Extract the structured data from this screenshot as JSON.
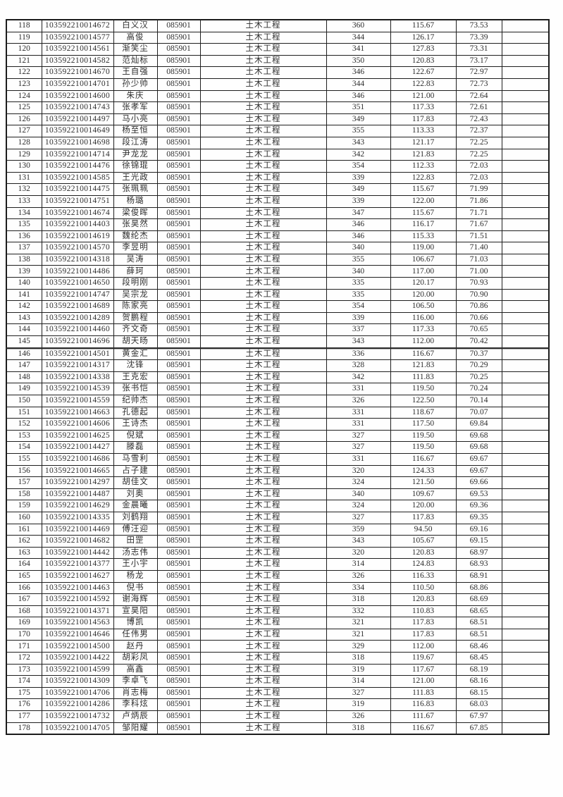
{
  "table": {
    "major_code_note": "085901",
    "major_name_note": "土木工程",
    "rows": [
      {
        "n": "118",
        "id": "103592210014672",
        "name": "白义汉",
        "code": "085901",
        "major": "土木工程",
        "s1": "360",
        "s2": "115.67",
        "s3": "73.53"
      },
      {
        "n": "119",
        "id": "103592210014577",
        "name": "高俊",
        "code": "085901",
        "major": "土木工程",
        "s1": "344",
        "s2": "126.17",
        "s3": "73.39"
      },
      {
        "n": "120",
        "id": "103592210014561",
        "name": "渐笑尘",
        "code": "085901",
        "major": "土木工程",
        "s1": "341",
        "s2": "127.83",
        "s3": "73.31"
      },
      {
        "n": "121",
        "id": "103592210014582",
        "name": "范灿标",
        "code": "085901",
        "major": "土木工程",
        "s1": "350",
        "s2": "120.83",
        "s3": "73.17"
      },
      {
        "n": "122",
        "id": "103592210014670",
        "name": "王自强",
        "code": "085901",
        "major": "土木工程",
        "s1": "346",
        "s2": "122.67",
        "s3": "72.97"
      },
      {
        "n": "123",
        "id": "103592210014701",
        "name": "孙少帅",
        "code": "085901",
        "major": "土木工程",
        "s1": "344",
        "s2": "122.83",
        "s3": "72.73"
      },
      {
        "n": "124",
        "id": "103592210014600",
        "name": "朱庆",
        "code": "085901",
        "major": "土木工程",
        "s1": "346",
        "s2": "121.00",
        "s3": "72.64"
      },
      {
        "n": "125",
        "id": "103592210014743",
        "name": "张孝军",
        "code": "085901",
        "major": "土木工程",
        "s1": "351",
        "s2": "117.33",
        "s3": "72.61"
      },
      {
        "n": "126",
        "id": "103592210014497",
        "name": "马小亮",
        "code": "085901",
        "major": "土木工程",
        "s1": "349",
        "s2": "117.83",
        "s3": "72.43"
      },
      {
        "n": "127",
        "id": "103592210014649",
        "name": "杨至恒",
        "code": "085901",
        "major": "土木工程",
        "s1": "355",
        "s2": "113.33",
        "s3": "72.37"
      },
      {
        "n": "128",
        "id": "103592210014698",
        "name": "段江涛",
        "code": "085901",
        "major": "土木工程",
        "s1": "343",
        "s2": "121.17",
        "s3": "72.25"
      },
      {
        "n": "129",
        "id": "103592210014714",
        "name": "尹龙龙",
        "code": "085901",
        "major": "土木工程",
        "s1": "342",
        "s2": "121.83",
        "s3": "72.25"
      },
      {
        "n": "130",
        "id": "103592210014476",
        "name": "徐锦琨",
        "code": "085901",
        "major": "土木工程",
        "s1": "354",
        "s2": "112.33",
        "s3": "72.03"
      },
      {
        "n": "131",
        "id": "103592210014585",
        "name": "王光政",
        "code": "085901",
        "major": "土木工程",
        "s1": "339",
        "s2": "122.83",
        "s3": "72.03"
      },
      {
        "n": "132",
        "id": "103592210014475",
        "name": "张珮珮",
        "code": "085901",
        "major": "土木工程",
        "s1": "349",
        "s2": "115.67",
        "s3": "71.99"
      },
      {
        "n": "133",
        "id": "103592210014751",
        "name": "杨璐",
        "code": "085901",
        "major": "土木工程",
        "s1": "339",
        "s2": "122.00",
        "s3": "71.86"
      },
      {
        "n": "134",
        "id": "103592210014674",
        "name": "梁俊晖",
        "code": "085901",
        "major": "土木工程",
        "s1": "347",
        "s2": "115.67",
        "s3": "71.71"
      },
      {
        "n": "135",
        "id": "103592210014403",
        "name": "张昊然",
        "code": "085901",
        "major": "土木工程",
        "s1": "346",
        "s2": "116.17",
        "s3": "71.67"
      },
      {
        "n": "136",
        "id": "103592210014619",
        "name": "魏纶杰",
        "code": "085901",
        "major": "土木工程",
        "s1": "346",
        "s2": "115.33",
        "s3": "71.51"
      },
      {
        "n": "137",
        "id": "103592210014570",
        "name": "李昱明",
        "code": "085901",
        "major": "土木工程",
        "s1": "340",
        "s2": "119.00",
        "s3": "71.40"
      },
      {
        "n": "138",
        "id": "103592210014318",
        "name": "吴涛",
        "code": "085901",
        "major": "土木工程",
        "s1": "355",
        "s2": "106.67",
        "s3": "71.03"
      },
      {
        "n": "139",
        "id": "103592210014486",
        "name": "薛珂",
        "code": "085901",
        "major": "土木工程",
        "s1": "340",
        "s2": "117.00",
        "s3": "71.00"
      },
      {
        "n": "140",
        "id": "103592210014650",
        "name": "段明刚",
        "code": "085901",
        "major": "土木工程",
        "s1": "335",
        "s2": "120.17",
        "s3": "70.93"
      },
      {
        "n": "141",
        "id": "103592210014747",
        "name": "吴宗龙",
        "code": "085901",
        "major": "土木工程",
        "s1": "335",
        "s2": "120.00",
        "s3": "70.90"
      },
      {
        "n": "142",
        "id": "103592210014689",
        "name": "陈家亮",
        "code": "085901",
        "major": "土木工程",
        "s1": "354",
        "s2": "106.50",
        "s3": "70.86"
      },
      {
        "n": "143",
        "id": "103592210014289",
        "name": "贺鹏程",
        "code": "085901",
        "major": "土木工程",
        "s1": "339",
        "s2": "116.00",
        "s3": "70.66"
      },
      {
        "n": "144",
        "id": "103592210014460",
        "name": "齐文奇",
        "code": "085901",
        "major": "土木工程",
        "s1": "337",
        "s2": "117.33",
        "s3": "70.65"
      },
      {
        "n": "145",
        "id": "103592210014696",
        "name": "胡天旸",
        "code": "085901",
        "major": "土木工程",
        "s1": "343",
        "s2": "112.00",
        "s3": "70.42"
      },
      {
        "n": "146",
        "id": "103592210014501",
        "name": "黄金汇",
        "code": "085901",
        "major": "土木工程",
        "s1": "336",
        "s2": "116.67",
        "s3": "70.37"
      },
      {
        "n": "147",
        "id": "103592210014317",
        "name": "沈锋",
        "code": "085901",
        "major": "土木工程",
        "s1": "328",
        "s2": "121.83",
        "s3": "70.29"
      },
      {
        "n": "148",
        "id": "103592210014338",
        "name": "王克宏",
        "code": "085901",
        "major": "土木工程",
        "s1": "342",
        "s2": "111.83",
        "s3": "70.25"
      },
      {
        "n": "149",
        "id": "103592210014539",
        "name": "张书恺",
        "code": "085901",
        "major": "土木工程",
        "s1": "331",
        "s2": "119.50",
        "s3": "70.24"
      },
      {
        "n": "150",
        "id": "103592210014559",
        "name": "纪帅杰",
        "code": "085901",
        "major": "土木工程",
        "s1": "326",
        "s2": "122.50",
        "s3": "70.14"
      },
      {
        "n": "151",
        "id": "103592210014663",
        "name": "孔德起",
        "code": "085901",
        "major": "土木工程",
        "s1": "331",
        "s2": "118.67",
        "s3": "70.07"
      },
      {
        "n": "152",
        "id": "103592210014606",
        "name": "王诗杰",
        "code": "085901",
        "major": "土木工程",
        "s1": "331",
        "s2": "117.50",
        "s3": "69.84"
      },
      {
        "n": "153",
        "id": "103592210014625",
        "name": "倪斌",
        "code": "085901",
        "major": "土木工程",
        "s1": "327",
        "s2": "119.50",
        "s3": "69.68"
      },
      {
        "n": "154",
        "id": "103592210014427",
        "name": "滕磊",
        "code": "085901",
        "major": "土木工程",
        "s1": "327",
        "s2": "119.50",
        "s3": "69.68"
      },
      {
        "n": "155",
        "id": "103592210014686",
        "name": "马雪利",
        "code": "085901",
        "major": "土木工程",
        "s1": "331",
        "s2": "116.67",
        "s3": "69.67"
      },
      {
        "n": "156",
        "id": "103592210014665",
        "name": "占子建",
        "code": "085901",
        "major": "土木工程",
        "s1": "320",
        "s2": "124.33",
        "s3": "69.67"
      },
      {
        "n": "157",
        "id": "103592210014297",
        "name": "胡佳文",
        "code": "085901",
        "major": "土木工程",
        "s1": "324",
        "s2": "121.50",
        "s3": "69.66"
      },
      {
        "n": "158",
        "id": "103592210014487",
        "name": "刘奥",
        "code": "085901",
        "major": "土木工程",
        "s1": "340",
        "s2": "109.67",
        "s3": "69.53"
      },
      {
        "n": "159",
        "id": "103592210014629",
        "name": "金晨曦",
        "code": "085901",
        "major": "土木工程",
        "s1": "324",
        "s2": "120.00",
        "s3": "69.36"
      },
      {
        "n": "160",
        "id": "103592210014335",
        "name": "刘鹤翔",
        "code": "085901",
        "major": "土木工程",
        "s1": "327",
        "s2": "117.83",
        "s3": "69.35"
      },
      {
        "n": "161",
        "id": "103592210014469",
        "name": "傅汪迎",
        "code": "085901",
        "major": "土木工程",
        "s1": "359",
        "s2": "94.50",
        "s3": "69.16"
      },
      {
        "n": "162",
        "id": "103592210014682",
        "name": "田罡",
        "code": "085901",
        "major": "土木工程",
        "s1": "343",
        "s2": "105.67",
        "s3": "69.15"
      },
      {
        "n": "163",
        "id": "103592210014442",
        "name": "汤志伟",
        "code": "085901",
        "major": "土木工程",
        "s1": "320",
        "s2": "120.83",
        "s3": "68.97"
      },
      {
        "n": "164",
        "id": "103592210014377",
        "name": "王小宇",
        "code": "085901",
        "major": "土木工程",
        "s1": "314",
        "s2": "124.83",
        "s3": "68.93"
      },
      {
        "n": "165",
        "id": "103592210014627",
        "name": "杨龙",
        "code": "085901",
        "major": "土木工程",
        "s1": "326",
        "s2": "116.33",
        "s3": "68.91"
      },
      {
        "n": "166",
        "id": "103592210014463",
        "name": "倪书",
        "code": "085901",
        "major": "土木工程",
        "s1": "334",
        "s2": "110.50",
        "s3": "68.86"
      },
      {
        "n": "167",
        "id": "103592210014592",
        "name": "谢海辉",
        "code": "085901",
        "major": "土木工程",
        "s1": "318",
        "s2": "120.83",
        "s3": "68.69"
      },
      {
        "n": "168",
        "id": "103592210014371",
        "name": "宣昊阳",
        "code": "085901",
        "major": "土木工程",
        "s1": "332",
        "s2": "110.83",
        "s3": "68.65"
      },
      {
        "n": "169",
        "id": "103592210014563",
        "name": "博凯",
        "code": "085901",
        "major": "土木工程",
        "s1": "321",
        "s2": "117.83",
        "s3": "68.51"
      },
      {
        "n": "170",
        "id": "103592210014646",
        "name": "任伟男",
        "code": "085901",
        "major": "土木工程",
        "s1": "321",
        "s2": "117.83",
        "s3": "68.51"
      },
      {
        "n": "171",
        "id": "103592210014500",
        "name": "赵丹",
        "code": "085901",
        "major": "土木工程",
        "s1": "329",
        "s2": "112.00",
        "s3": "68.46"
      },
      {
        "n": "172",
        "id": "103592210014422",
        "name": "胡彩凤",
        "code": "085901",
        "major": "土木工程",
        "s1": "318",
        "s2": "119.67",
        "s3": "68.45"
      },
      {
        "n": "173",
        "id": "103592210014599",
        "name": "高鑫",
        "code": "085901",
        "major": "土木工程",
        "s1": "319",
        "s2": "117.67",
        "s3": "68.19"
      },
      {
        "n": "174",
        "id": "103592210014309",
        "name": "李卓飞",
        "code": "085901",
        "major": "土木工程",
        "s1": "314",
        "s2": "121.00",
        "s3": "68.16"
      },
      {
        "n": "175",
        "id": "103592210014706",
        "name": "肖志梅",
        "code": "085901",
        "major": "土木工程",
        "s1": "327",
        "s2": "111.83",
        "s3": "68.15"
      },
      {
        "n": "176",
        "id": "103592210014286",
        "name": "李科炫",
        "code": "085901",
        "major": "土木工程",
        "s1": "319",
        "s2": "116.83",
        "s3": "68.03"
      },
      {
        "n": "177",
        "id": "103592210014732",
        "name": "卢炳辰",
        "code": "085901",
        "major": "土木工程",
        "s1": "326",
        "s2": "111.67",
        "s3": "67.97"
      },
      {
        "n": "178",
        "id": "103592210014705",
        "name": "邹阳耀",
        "code": "085901",
        "major": "土木工程",
        "s1": "318",
        "s2": "116.67",
        "s3": "67.85"
      }
    ]
  }
}
